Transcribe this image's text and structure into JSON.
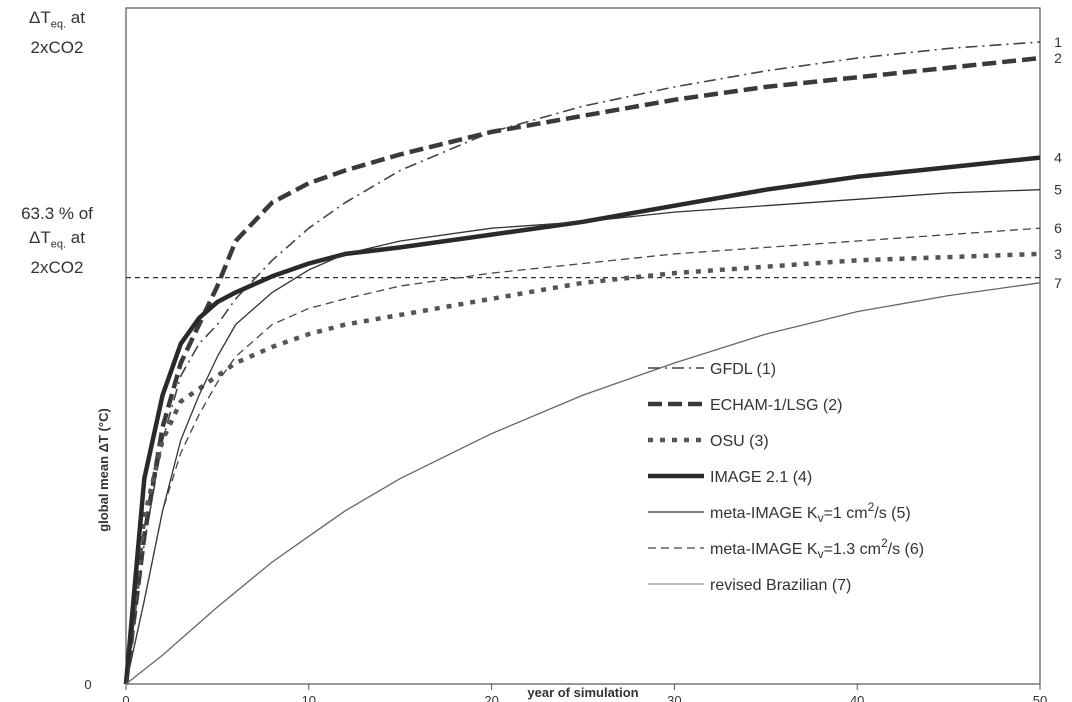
{
  "chart_data": {
    "type": "line",
    "title": "",
    "xlabel": "year of simulation",
    "ylabel": "global mean  ΔT (°C)",
    "xlim": [
      0,
      50
    ],
    "ylim": [
      0,
      1
    ],
    "x_ticks": [
      "0",
      "10",
      "20",
      "30",
      "40",
      "50"
    ],
    "y_ticks": [
      {
        "value": 0,
        "label": "0"
      }
    ],
    "top_label": {
      "line1_prefix": "ΔT",
      "line1_sub": "eq.",
      "line1_suffix": " at",
      "line2": "2xCO2"
    },
    "mid_label": {
      "line1": "63.3 % of",
      "line2_prefix": "ΔT",
      "line2_sub": "eq.",
      "line2_suffix": " at",
      "line3": "2xCO2"
    },
    "reference_line": {
      "y": 0.633
    },
    "grid": false,
    "legend_position": "bottom-right",
    "series": [
      {
        "name": "GFDL (1)",
        "end_label": "1",
        "color": "#444444",
        "style": "dashdot",
        "x": [
          0,
          1,
          2,
          3,
          4,
          5,
          6,
          8,
          10,
          12,
          15,
          20,
          25,
          30,
          35,
          40,
          45,
          50
        ],
        "y": [
          0,
          0.22,
          0.38,
          0.48,
          0.53,
          0.56,
          0.6,
          0.66,
          0.71,
          0.75,
          0.8,
          0.86,
          0.9,
          0.93,
          0.955,
          0.975,
          0.99,
          1.0
        ]
      },
      {
        "name": "ECHAM-1/LSG (2)",
        "end_label": "2",
        "color": "#3a3a3a",
        "style": "heavydash",
        "x": [
          0,
          1,
          2,
          3,
          4,
          5,
          6,
          8,
          10,
          12,
          15,
          20,
          25,
          30,
          35,
          40,
          45,
          50
        ],
        "y": [
          0,
          0.23,
          0.4,
          0.5,
          0.56,
          0.62,
          0.69,
          0.75,
          0.78,
          0.8,
          0.825,
          0.86,
          0.885,
          0.91,
          0.93,
          0.945,
          0.96,
          0.975
        ]
      },
      {
        "name": "OSU (3)",
        "end_label": "3",
        "color": "#555555",
        "style": "squaredot",
        "x": [
          0,
          1,
          2,
          3,
          4,
          5,
          6,
          8,
          10,
          12,
          15,
          20,
          25,
          30,
          35,
          40,
          45,
          50
        ],
        "y": [
          0,
          0.26,
          0.38,
          0.44,
          0.46,
          0.48,
          0.5,
          0.525,
          0.545,
          0.56,
          0.575,
          0.6,
          0.625,
          0.64,
          0.65,
          0.66,
          0.665,
          0.67
        ]
      },
      {
        "name": "IMAGE 2.1 (4)",
        "end_label": "4",
        "color": "#2a2a2a",
        "style": "thick",
        "x": [
          0,
          1,
          2,
          3,
          4,
          5,
          6,
          8,
          10,
          12,
          15,
          20,
          25,
          30,
          35,
          40,
          45,
          50
        ],
        "y": [
          0,
          0.32,
          0.45,
          0.53,
          0.57,
          0.595,
          0.61,
          0.635,
          0.655,
          0.67,
          0.68,
          0.7,
          0.72,
          0.745,
          0.77,
          0.79,
          0.805,
          0.82
        ]
      },
      {
        "name": "meta-IMAGE Kv=1 cm2/s (5)",
        "end_label": "5",
        "color": "#333333",
        "style": "thin",
        "x": [
          0,
          1,
          2,
          3,
          4,
          5,
          6,
          8,
          10,
          12,
          15,
          20,
          25,
          30,
          35,
          40,
          45,
          50
        ],
        "y": [
          0,
          0.13,
          0.27,
          0.38,
          0.45,
          0.51,
          0.56,
          0.61,
          0.645,
          0.67,
          0.69,
          0.71,
          0.72,
          0.735,
          0.745,
          0.755,
          0.765,
          0.77
        ]
      },
      {
        "name": "meta-IMAGE Kv=1.3 cm2/s (6)",
        "end_label": "6",
        "color": "#444444",
        "style": "dashed",
        "x": [
          0,
          1,
          2,
          3,
          4,
          5,
          6,
          8,
          10,
          12,
          15,
          20,
          25,
          30,
          35,
          40,
          45,
          50
        ],
        "y": [
          0,
          0.13,
          0.27,
          0.36,
          0.42,
          0.47,
          0.51,
          0.56,
          0.585,
          0.6,
          0.62,
          0.64,
          0.655,
          0.67,
          0.68,
          0.69,
          0.7,
          0.71
        ]
      },
      {
        "name": "revised Brazilian (7)",
        "end_label": "7",
        "color": "#666666",
        "style": "thin",
        "x": [
          0,
          2,
          5,
          8,
          10,
          12,
          15,
          20,
          25,
          30,
          35,
          40,
          45,
          50
        ],
        "y": [
          0,
          0.045,
          0.12,
          0.19,
          0.23,
          0.27,
          0.32,
          0.39,
          0.45,
          0.5,
          0.545,
          0.58,
          0.605,
          0.625
        ]
      }
    ],
    "legend": [
      {
        "label": "GFDL (1)",
        "style": "dashdot"
      },
      {
        "label": "ECHAM-1/LSG (2)",
        "style": "heavydash"
      },
      {
        "label": "OSU (3)",
        "style": "squaredot"
      },
      {
        "label": "IMAGE 2.1 (4)",
        "style": "thick"
      },
      {
        "label_prefix": "meta-IMAGE K",
        "label_sub": "v",
        "label_mid": "=1 cm",
        "label_sup": "2",
        "label_suffix": "/s (5)",
        "style": "thin"
      },
      {
        "label_prefix": "meta-IMAGE K",
        "label_sub": "v",
        "label_mid": "=1.3 cm",
        "label_sup": "2",
        "label_suffix": "/s (6)",
        "style": "dashed"
      },
      {
        "label": "revised Brazilian (7)",
        "style": "thin-light"
      }
    ]
  }
}
